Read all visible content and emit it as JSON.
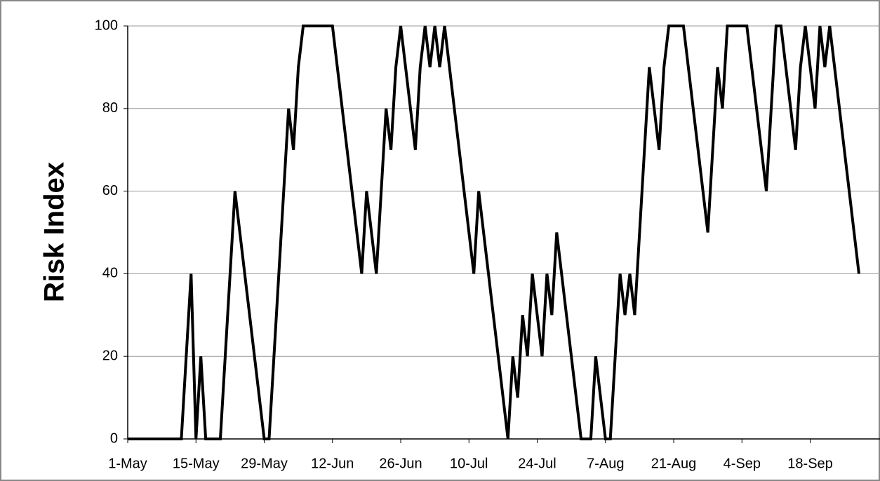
{
  "chart_data": {
    "type": "line",
    "y_label": "Risk Index",
    "categories": [
      "1-May",
      null,
      null,
      null,
      null,
      null,
      null,
      null,
      null,
      null,
      null,
      null,
      null,
      null,
      "15-May",
      null,
      null,
      null,
      null,
      null,
      null,
      null,
      null,
      null,
      null,
      null,
      null,
      null,
      "29-May",
      null,
      null,
      null,
      null,
      null,
      null,
      null,
      null,
      null,
      null,
      null,
      null,
      null,
      "12-Jun",
      null,
      null,
      null,
      null,
      null,
      null,
      null,
      null,
      null,
      null,
      null,
      null,
      null,
      "26-Jun",
      null,
      null,
      null,
      null,
      null,
      null,
      null,
      null,
      null,
      null,
      null,
      null,
      null,
      "10-Jul",
      null,
      null,
      null,
      null,
      null,
      null,
      null,
      null,
      null,
      null,
      null,
      null,
      null,
      "24-Jul",
      null,
      null,
      null,
      null,
      null,
      null,
      null,
      null,
      null,
      null,
      null,
      null,
      null,
      "7-Aug",
      null,
      null,
      null,
      null,
      null,
      null,
      null,
      null,
      null,
      null,
      null,
      null,
      null,
      "21-Aug",
      null,
      null,
      null,
      null,
      null,
      null,
      null,
      null,
      null,
      null,
      null,
      null,
      null,
      "4-Sep",
      null,
      null,
      null,
      null,
      null,
      null,
      null,
      null,
      null,
      null,
      null,
      null,
      null,
      "18-Sep",
      null,
      null,
      null,
      null,
      null,
      null,
      null,
      null,
      null,
      null
    ],
    "values": [
      0,
      0,
      0,
      0,
      0,
      0,
      0,
      0,
      0,
      0,
      0,
      0,
      20,
      40,
      0,
      20,
      0,
      0,
      0,
      0,
      20,
      40,
      60,
      50,
      40,
      30,
      20,
      10,
      0,
      0,
      20,
      40,
      60,
      80,
      70,
      90,
      100,
      100,
      100,
      100,
      100,
      100,
      100,
      90,
      80,
      70,
      60,
      50,
      40,
      60,
      50,
      40,
      60,
      80,
      70,
      90,
      100,
      90,
      80,
      70,
      90,
      100,
      90,
      100,
      90,
      100,
      90,
      80,
      70,
      60,
      50,
      40,
      60,
      50,
      40,
      30,
      20,
      10,
      0,
      20,
      10,
      30,
      20,
      40,
      30,
      20,
      40,
      30,
      50,
      40,
      30,
      20,
      10,
      0,
      0,
      0,
      20,
      10,
      0,
      0,
      20,
      40,
      30,
      40,
      30,
      50,
      70,
      90,
      80,
      70,
      90,
      100,
      100,
      100,
      100,
      90,
      80,
      70,
      60,
      50,
      70,
      90,
      80,
      100,
      100,
      100,
      100,
      100,
      90,
      80,
      70,
      60,
      80,
      100,
      100,
      90,
      80,
      70,
      90,
      100,
      90,
      80,
      100,
      90,
      100,
      90,
      80,
      70,
      60,
      50,
      40
    ],
    "color": "#000000",
    "ylim": [
      0,
      100
    ],
    "yticks": [
      0,
      20,
      40,
      60,
      80,
      100
    ],
    "grid": true
  }
}
